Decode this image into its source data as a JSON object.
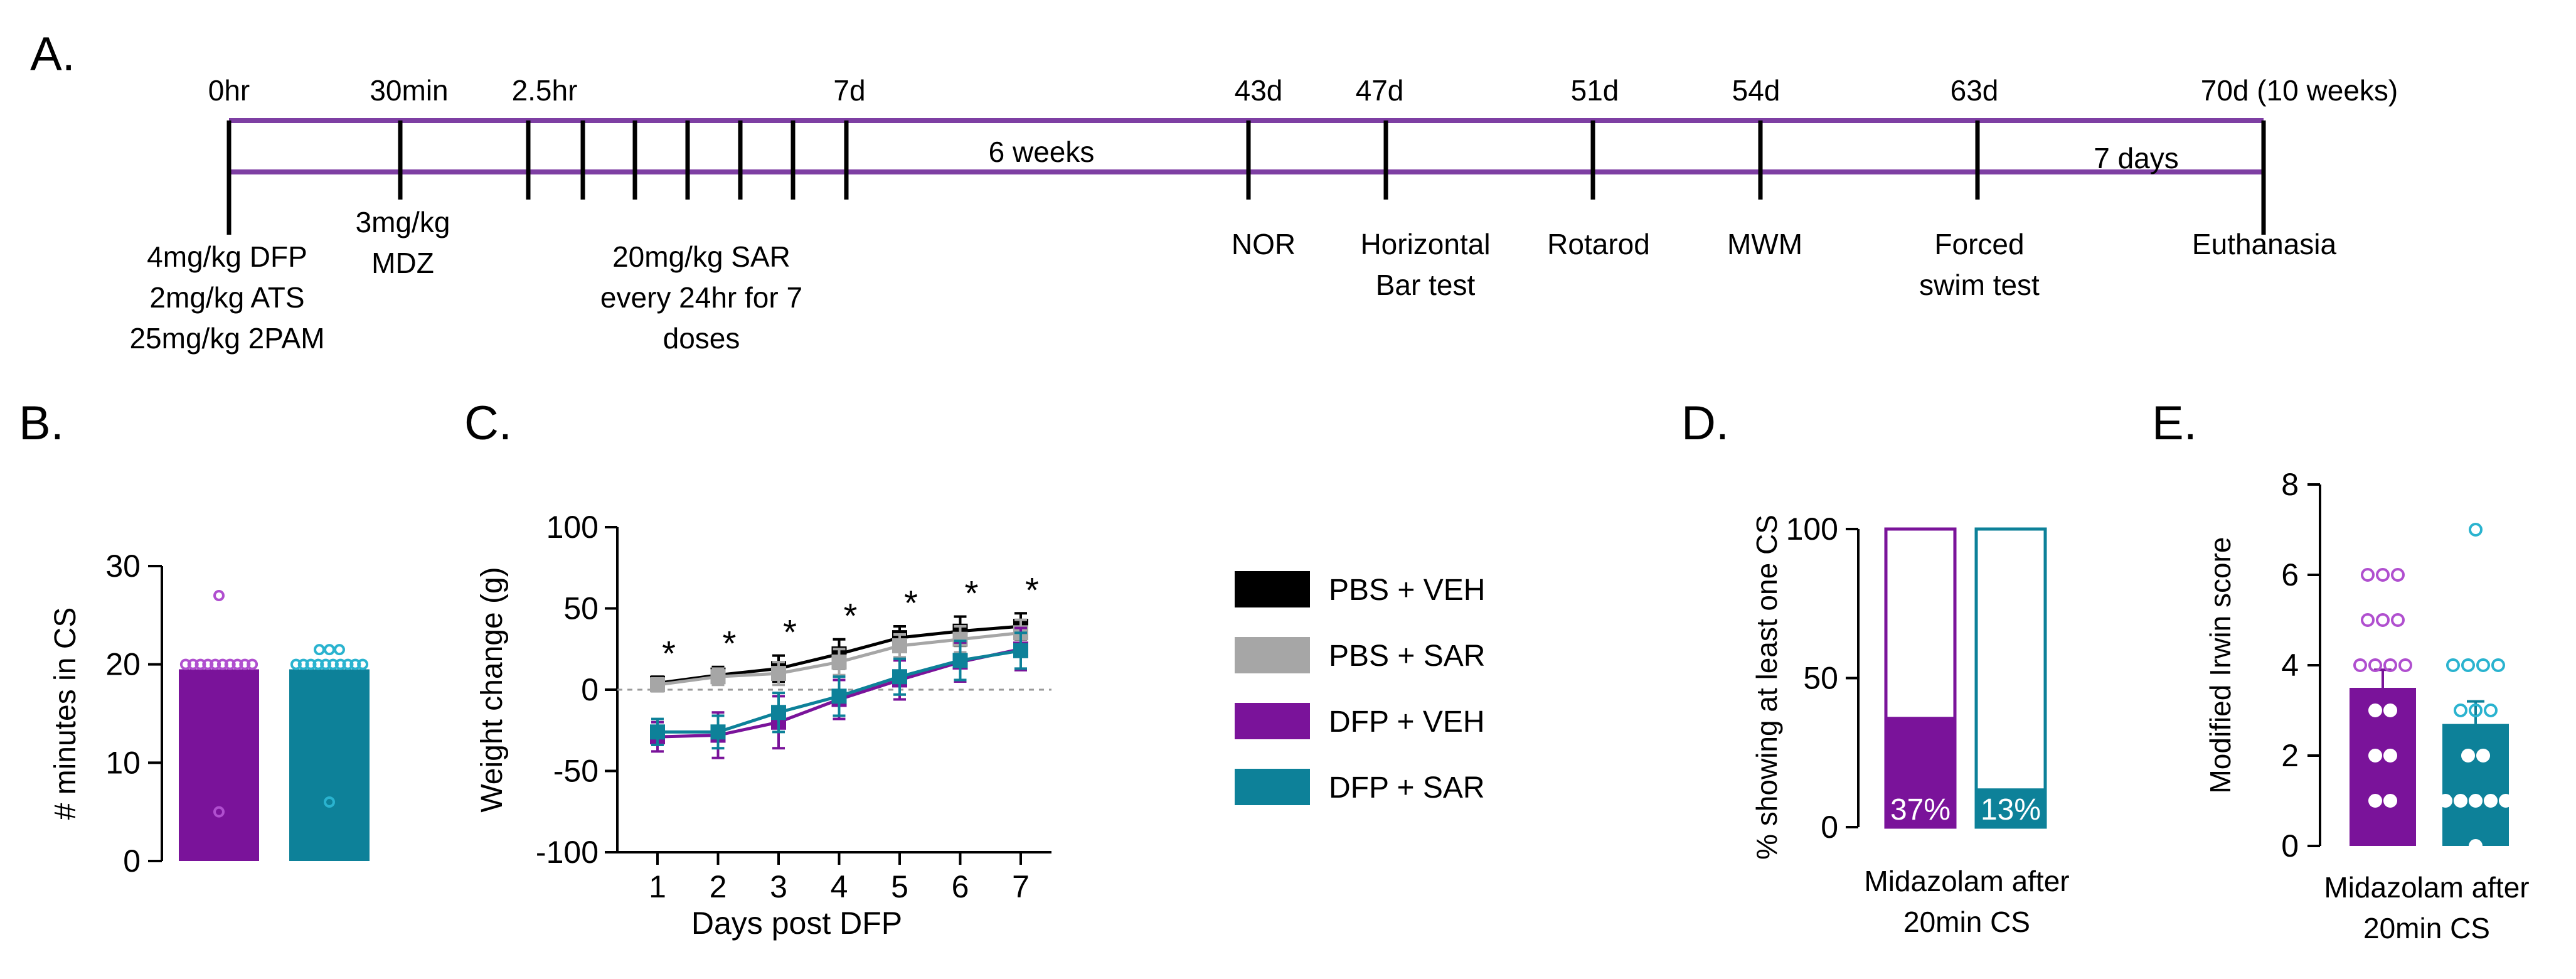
{
  "colors": {
    "purple": "#7a139a",
    "teal": "#0d8199",
    "purple_light": "#b04fcf",
    "teal_light": "#2ab3cf",
    "timeline": "#7e3fa3",
    "black": "#000000",
    "gray": "#a6a6a6"
  },
  "panel_labels": {
    "a": "A.",
    "b": "B.",
    "c": "C.",
    "d": "D.",
    "e": "E."
  },
  "timeline": {
    "top_labels": [
      "0hr",
      "30min",
      "2.5hr",
      "7d",
      "43d",
      "47d",
      "51d",
      "54d",
      "63d",
      "70d (10 weeks)"
    ],
    "bottom_labels": [
      [
        "4mg/kg DFP",
        "2mg/kg ATS",
        "25mg/kg 2PAM"
      ],
      [
        "3mg/kg",
        "MDZ"
      ],
      [
        "20mg/kg SAR",
        "every 24hr for 7",
        "doses"
      ],
      [
        "NOR"
      ],
      [
        "Horizontal",
        "Bar test"
      ],
      [
        "Rotarod"
      ],
      [
        "MWM"
      ],
      [
        "Forced",
        "swim test"
      ],
      [
        "Euthanasia"
      ]
    ],
    "span_labels": [
      "6 weeks",
      "7 days"
    ]
  },
  "chart_data": [
    {
      "panel": "B",
      "type": "bar",
      "ylabel": "# minutes in CS",
      "ylim": [
        0,
        30
      ],
      "yticks": [
        0,
        10,
        20,
        30
      ],
      "series": [
        {
          "name": "DFP + VEH",
          "mean": 19.5,
          "points": [
            27,
            20,
            20,
            20,
            20,
            20,
            20,
            20,
            20,
            20,
            20,
            5
          ]
        },
        {
          "name": "DFP + SAR",
          "mean": 19.5,
          "points": [
            21.5,
            21.5,
            21.5,
            20,
            20,
            20,
            20,
            20,
            20,
            20,
            20,
            20,
            20,
            6
          ]
        }
      ]
    },
    {
      "panel": "C",
      "type": "line",
      "xlabel": "Days post DFP",
      "ylabel": "Weight change (g)",
      "x": [
        1,
        2,
        3,
        4,
        5,
        6,
        7
      ],
      "ylim": [
        -100,
        100
      ],
      "yticks": [
        -100,
        -50,
        0,
        50,
        100
      ],
      "significance": [
        "*",
        "*",
        "*",
        "*",
        "*",
        "*",
        "*"
      ],
      "series": [
        {
          "name": "PBS + VEH",
          "values": [
            4,
            9,
            13,
            22,
            32,
            36,
            39
          ],
          "sem": [
            4,
            5,
            8,
            9,
            7,
            9,
            8
          ]
        },
        {
          "name": "PBS + SAR",
          "values": [
            3,
            8,
            10,
            17,
            27,
            31,
            35
          ],
          "sem": [
            4,
            5,
            7,
            8,
            7,
            8,
            8
          ]
        },
        {
          "name": "DFP + VEH",
          "values": [
            -29,
            -28,
            -20,
            -6,
            6,
            17,
            25
          ],
          "sem": [
            9,
            14,
            16,
            12,
            12,
            12,
            13
          ]
        },
        {
          "name": "DFP + SAR",
          "values": [
            -26,
            -26,
            -14,
            -4,
            8,
            18,
            24
          ],
          "sem": [
            8,
            10,
            12,
            12,
            11,
            12,
            11
          ]
        }
      ],
      "legend": [
        "PBS + VEH",
        "PBS + SAR",
        "DFP + VEH",
        "DFP + SAR"
      ]
    },
    {
      "panel": "D",
      "type": "bar",
      "ylabel": "% showing at least one CS",
      "xlabel": [
        "Midazolam after",
        "20min CS"
      ],
      "ylim": [
        0,
        100
      ],
      "yticks": [
        0,
        50,
        100
      ],
      "total": 100,
      "series": [
        {
          "name": "DFP + VEH",
          "value": 37,
          "label": "37%"
        },
        {
          "name": "DFP + SAR",
          "value": 13,
          "label": "13%"
        }
      ]
    },
    {
      "panel": "E",
      "type": "bar",
      "ylabel": "Modified Irwin score",
      "xlabel": [
        "Midazolam after",
        "20min CS"
      ],
      "ylim": [
        0,
        8
      ],
      "yticks": [
        0,
        2,
        4,
        6,
        8
      ],
      "series": [
        {
          "name": "DFP + VEH",
          "mean": 3.5,
          "sem": 0.4,
          "points": [
            6,
            6,
            6,
            5,
            5,
            5,
            4,
            4,
            4,
            4,
            3,
            3,
            2,
            2,
            1,
            1
          ]
        },
        {
          "name": "DFP + SAR",
          "mean": 2.7,
          "sem": 0.5,
          "points": [
            7,
            4,
            4,
            4,
            4,
            3,
            3,
            3,
            2,
            2,
            1,
            1,
            1,
            1,
            1,
            0
          ]
        }
      ]
    }
  ]
}
